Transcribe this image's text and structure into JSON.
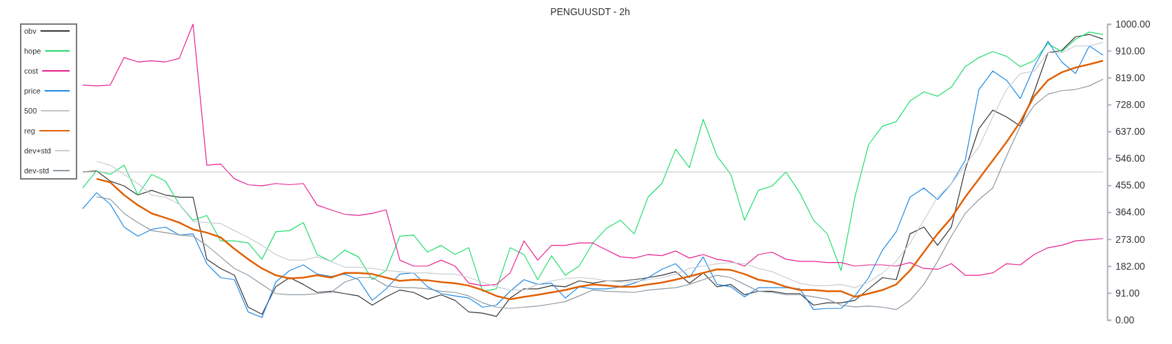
{
  "chart_data": {
    "type": "line",
    "title": "PENGUUSDT - 2h",
    "categories": [
      null,
      null,
      null,
      null,
      null,
      null,
      null,
      null,
      null,
      null,
      null,
      null,
      null,
      null,
      null,
      null,
      null,
      null,
      null,
      null,
      null,
      null,
      null,
      null,
      null,
      null,
      null,
      null,
      null,
      null,
      null,
      null,
      null,
      null,
      null,
      null,
      null,
      null,
      null,
      null,
      null,
      null,
      null,
      null,
      null,
      null,
      null,
      null,
      null,
      null,
      null,
      null,
      null,
      null,
      null,
      null,
      null,
      null,
      null,
      null,
      null,
      null,
      null,
      null,
      null,
      null,
      null,
      null,
      null,
      null,
      null,
      null,
      null,
      null,
      null
    ],
    "ylim": [
      0,
      1000
    ],
    "yticks": [
      {
        "value": 0,
        "label": "0.00"
      },
      {
        "value": 91,
        "label": "91.00"
      },
      {
        "value": 182,
        "label": "182.00"
      },
      {
        "value": 273,
        "label": "273.00"
      },
      {
        "value": 364,
        "label": "364.00"
      },
      {
        "value": 455,
        "label": "455.00"
      },
      {
        "value": 546,
        "label": "546.00"
      },
      {
        "value": 637,
        "label": "637.00"
      },
      {
        "value": 728,
        "label": "728.00"
      },
      {
        "value": 819,
        "label": "819.00"
      },
      {
        "value": 910,
        "label": "910.00"
      },
      {
        "value": 1000,
        "label": "1000.00"
      }
    ],
    "tick_labels": "y",
    "grid": false,
    "legend": "top left",
    "marker": "none",
    "line_style": "solid",
    "series": [
      {
        "name": "obv",
        "color": "#333333",
        "values": [
          500,
          504,
          469,
          453,
          422,
          438,
          422,
          415,
          415,
          205,
          174,
          151,
          43,
          19,
          112,
          143,
          120,
          93,
          97,
          89,
          81,
          50,
          78,
          101,
          93,
          70,
          85,
          66,
          27,
          23,
          12,
          74,
          105,
          105,
          116,
          112,
          132,
          124,
          132,
          132,
          136,
          143,
          151,
          163,
          124,
          159,
          112,
          120,
          85,
          97,
          97,
          89,
          89,
          50,
          58,
          58,
          66,
          105,
          143,
          136,
          291,
          314,
          252,
          314,
          508,
          647,
          709,
          686,
          655,
          771,
          903,
          911,
          957,
          965,
          949
        ]
      },
      {
        "name": "hope",
        "color": "#1fdc6e",
        "values": [
          446,
          504,
          492,
          523,
          422,
          492,
          469,
          391,
          337,
          353,
          267,
          267,
          260,
          205,
          298,
          302,
          329,
          221,
          198,
          236,
          213,
          136,
          167,
          283,
          287,
          229,
          252,
          221,
          244,
          97,
          105,
          244,
          221,
          136,
          217,
          151,
          182,
          260,
          310,
          337,
          291,
          415,
          461,
          577,
          515,
          678,
          554,
          492,
          337,
          438,
          453,
          500,
          430,
          337,
          291,
          167,
          415,
          593,
          655,
          670,
          740,
          771,
          756,
          787,
          856,
          887,
          907,
          891,
          856,
          876,
          934,
          907,
          949,
          973,
          965
        ]
      },
      {
        "name": "cost",
        "color": "#e91e8c",
        "values": [
          794,
          791,
          794,
          887,
          872,
          876,
          872,
          884,
          1000,
          523,
          527,
          477,
          457,
          453,
          461,
          457,
          461,
          388,
          372,
          357,
          353,
          360,
          372,
          202,
          182,
          182,
          202,
          182,
          124,
          116,
          120,
          159,
          267,
          202,
          252,
          252,
          260,
          260,
          236,
          213,
          209,
          221,
          217,
          233,
          209,
          221,
          205,
          198,
          182,
          221,
          229,
          205,
          198,
          198,
          194,
          194,
          182,
          186,
          186,
          182,
          194,
          174,
          171,
          190,
          151,
          151,
          159,
          190,
          186,
          221,
          244,
          252,
          267,
          271,
          275
        ]
      },
      {
        "name": "price",
        "color": "#1e88e5",
        "values": [
          376,
          430,
          391,
          314,
          283,
          306,
          314,
          287,
          291,
          190,
          143,
          136,
          27,
          8,
          128,
          167,
          186,
          155,
          147,
          155,
          136,
          66,
          105,
          155,
          159,
          112,
          89,
          81,
          74,
          43,
          50,
          97,
          136,
          120,
          124,
          74,
          112,
          105,
          105,
          112,
          124,
          143,
          171,
          190,
          143,
          213,
          120,
          112,
          78,
          109,
          109,
          109,
          105,
          35,
          39,
          39,
          81,
          143,
          236,
          298,
          415,
          446,
          407,
          461,
          539,
          779,
          841,
          810,
          748,
          856,
          942,
          872,
          833,
          926,
          895
        ]
      },
      {
        "name": "500",
        "color": "#c4c4c4",
        "values": [
          500,
          500,
          500,
          500,
          500,
          500,
          500,
          500,
          500,
          500,
          500,
          500,
          500,
          500,
          500,
          500,
          500,
          500,
          500,
          500,
          500,
          500,
          500,
          500,
          500,
          500,
          500,
          500,
          500,
          500,
          500,
          500,
          500,
          500,
          500,
          500,
          500,
          500,
          500,
          500,
          500,
          500,
          500,
          500,
          500,
          500,
          500,
          500,
          500,
          500,
          500,
          500,
          500,
          500,
          500,
          500,
          500,
          500,
          500,
          500,
          500,
          500,
          500,
          500,
          500,
          500,
          500,
          500,
          500,
          500,
          500,
          500,
          500,
          500,
          500
        ]
      },
      {
        "name": "reg",
        "color": "#e06000",
        "values": [
          null,
          477,
          465,
          422,
          388,
          360,
          345,
          329,
          306,
          295,
          279,
          240,
          205,
          174,
          151,
          140,
          143,
          151,
          143,
          159,
          159,
          155,
          143,
          132,
          136,
          134,
          128,
          124,
          116,
          101,
          81,
          70,
          78,
          85,
          93,
          101,
          112,
          120,
          116,
          112,
          112,
          120,
          126,
          136,
          147,
          159,
          171,
          169,
          155,
          136,
          128,
          112,
          101,
          101,
          97,
          97,
          78,
          89,
          101,
          120,
          167,
          229,
          291,
          345,
          415,
          477,
          539,
          601,
          670,
          756,
          810,
          837,
          853,
          864,
          876
        ]
      },
      {
        "name": "dev+std",
        "color": "#c9ced3",
        "values": [
          null,
          536,
          523,
          492,
          461,
          422,
          415,
          391,
          333,
          329,
          326,
          302,
          279,
          252,
          221,
          202,
          202,
          213,
          198,
          178,
          178,
          174,
          167,
          163,
          159,
          159,
          155,
          155,
          143,
          128,
          112,
          101,
          101,
          120,
          132,
          140,
          143,
          140,
          132,
          128,
          128,
          136,
          143,
          155,
          174,
          182,
          190,
          194,
          190,
          174,
          163,
          143,
          124,
          116,
          116,
          120,
          109,
          128,
          159,
          198,
          260,
          337,
          415,
          461,
          523,
          585,
          686,
          779,
          833,
          841,
          903,
          903,
          926,
          926,
          938
        ]
      },
      {
        "name": "dev-std",
        "color": "#8c98a2",
        "values": [
          null,
          416,
          408,
          360,
          329,
          302,
          295,
          287,
          283,
          252,
          213,
          174,
          151,
          120,
          89,
          85,
          85,
          89,
          93,
          128,
          143,
          143,
          116,
          109,
          109,
          105,
          97,
          93,
          81,
          58,
          43,
          39,
          43,
          47,
          54,
          62,
          81,
          101,
          97,
          95,
          93,
          101,
          105,
          109,
          120,
          136,
          151,
          143,
          120,
          97,
          93,
          85,
          85,
          78,
          70,
          50,
          44,
          47,
          43,
          35,
          66,
          120,
          198,
          283,
          360,
          407,
          446,
          554,
          655,
          725,
          763,
          775,
          779,
          791,
          814
        ]
      }
    ]
  }
}
